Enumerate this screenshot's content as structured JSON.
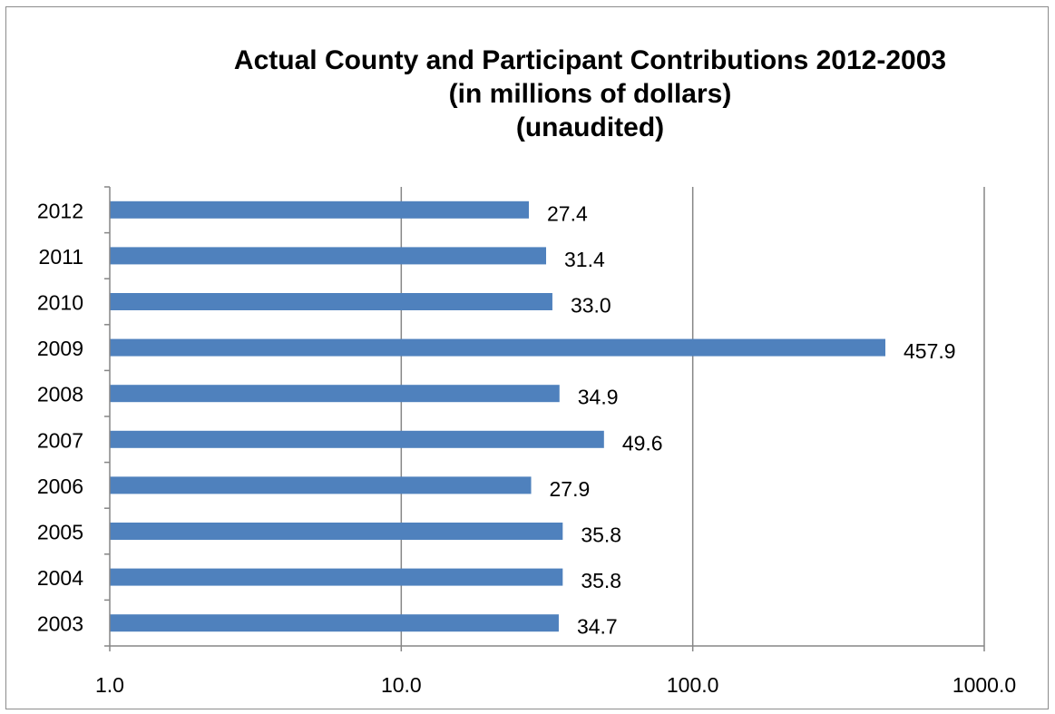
{
  "chart_data": {
    "type": "bar",
    "orientation": "horizontal",
    "title_lines": [
      "Actual County and Participant Contributions 2012-2003",
      "(in millions of dollars)",
      "(unaudited)"
    ],
    "categories": [
      "2012",
      "2011",
      "2010",
      "2009",
      "2008",
      "2007",
      "2006",
      "2005",
      "2004",
      "2003"
    ],
    "values": [
      27.4,
      31.4,
      33.0,
      457.9,
      34.9,
      49.6,
      27.9,
      35.8,
      35.8,
      34.7
    ],
    "data_labels": [
      "27.4",
      "31.4",
      "33.0",
      "457.9",
      "34.9",
      "49.6",
      "27.9",
      "35.8",
      "35.8",
      "34.7"
    ],
    "x_scale": "log",
    "xlim": [
      1,
      1000
    ],
    "x_ticks": [
      1,
      10,
      100,
      1000
    ],
    "x_tick_labels": [
      "1.0",
      "10.0",
      "100.0",
      "1000.0"
    ],
    "grid": "vertical major gridlines",
    "legend": "none",
    "colors": {
      "bar": "#4f81bd",
      "gridline": "#868686",
      "axis": "#868686",
      "frame": "#8c8c8c"
    }
  }
}
